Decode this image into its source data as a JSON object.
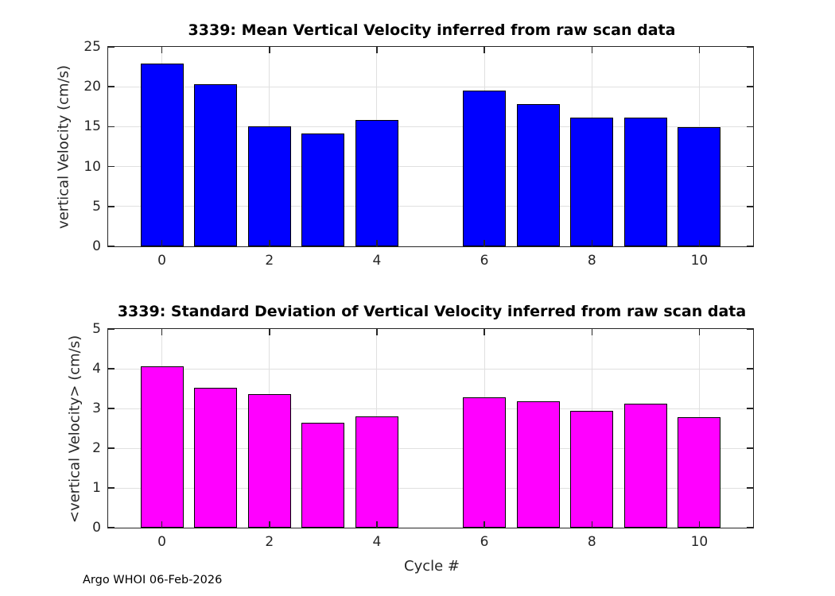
{
  "footer": "Argo WHOI 06-Feb-2026",
  "colors": {
    "bar_mean": "#0000ff",
    "bar_std": "#ff00ff",
    "bar_edge": "#000000",
    "grid": "#e0e0e0",
    "axis": "#262626",
    "tick_text": "#262626",
    "title_text": "#000000"
  },
  "chart_data": [
    {
      "type": "bar",
      "title": "3339: Mean Vertical Velocity inferred from raw scan data",
      "ylabel": "vertical Velocity (cm/s)",
      "xlabel": "",
      "x": [
        0,
        1,
        2,
        3,
        4,
        6,
        7,
        8,
        9,
        10
      ],
      "values": [
        22.9,
        20.3,
        15.0,
        14.1,
        15.8,
        19.5,
        17.8,
        16.1,
        16.1,
        14.9
      ],
      "xlim": [
        -1,
        11
      ],
      "ylim": [
        0,
        25
      ],
      "xticks": [
        0,
        2,
        4,
        6,
        8,
        10
      ],
      "yticks": [
        0,
        5,
        10,
        15,
        20,
        25
      ],
      "bar_width_fraction": 0.8,
      "grid": true,
      "legend": "none",
      "bar_color": "#0000ff",
      "edge_color": "#000000"
    },
    {
      "type": "bar",
      "title": "3339: Standard Deviation of Vertical Velocity inferred from raw scan data",
      "ylabel": "<vertical Velocity> (cm/s)",
      "xlabel": "Cycle #",
      "x": [
        0,
        1,
        2,
        3,
        4,
        6,
        7,
        8,
        9,
        10
      ],
      "values": [
        4.07,
        3.52,
        3.37,
        2.65,
        2.81,
        3.28,
        3.18,
        2.94,
        3.12,
        2.79
      ],
      "xlim": [
        -1,
        11
      ],
      "ylim": [
        0,
        5
      ],
      "xticks": [
        0,
        2,
        4,
        6,
        8,
        10
      ],
      "yticks": [
        0,
        1,
        2,
        3,
        4,
        5
      ],
      "bar_width_fraction": 0.8,
      "grid": true,
      "legend": "none",
      "bar_color": "#ff00ff",
      "edge_color": "#000000"
    }
  ]
}
